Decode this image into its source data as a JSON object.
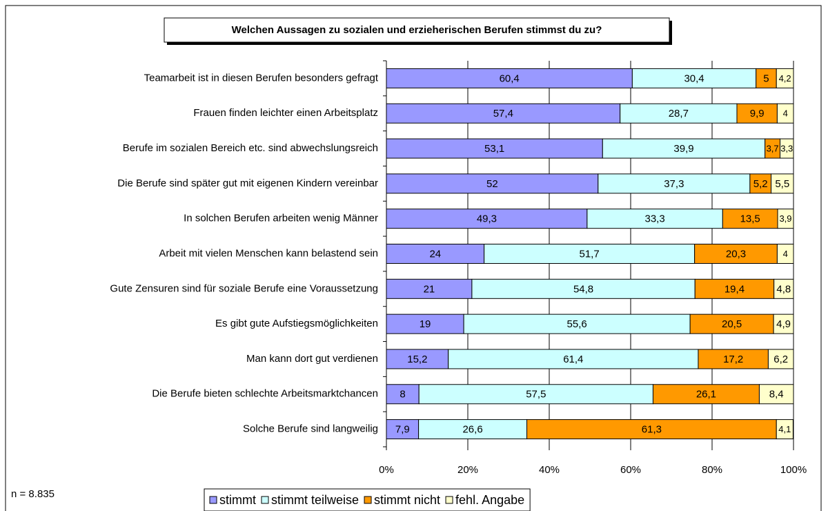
{
  "chart_data": {
    "type": "stacked_barh",
    "title": "Welchen Aussagen zu sozialen und erzieherischen Berufen stimmst du zu?",
    "note": "n = 8.835",
    "categories": [
      "Teamarbeit ist in diesen Berufen besonders gefragt",
      "Frauen finden leichter einen Arbeitsplatz",
      "Berufe im sozialen Bereich etc. sind abwechslungsreich",
      "Die Berufe sind später gut mit eigenen Kindern vereinbar",
      "In solchen Berufen arbeiten wenig Männer",
      "Arbeit mit vielen Menschen kann belastend sein",
      "Gute Zensuren sind für soziale Berufe eine Voraussetzung",
      "Es gibt gute Aufstiegsmöglichkeiten",
      "Man kann dort gut verdienen",
      "Die Berufe bieten schlechte Arbeitsmarktchancen",
      "Solche Berufe sind langweilig"
    ],
    "series": [
      {
        "name": "stimmt",
        "color": "#9999ff",
        "values": [
          60.4,
          57.4,
          53.1,
          52,
          49.3,
          24,
          21,
          19,
          15.2,
          8,
          7.9
        ],
        "value_labels": [
          "60,4",
          "57,4",
          "53,1",
          "52",
          "49,3",
          "24",
          "21",
          "19",
          "15,2",
          "8",
          "7,9"
        ]
      },
      {
        "name": "stimmt teilweise",
        "color": "#ccffff",
        "values": [
          30.4,
          28.7,
          39.9,
          37.3,
          33.3,
          51.7,
          54.8,
          55.6,
          61.4,
          57.5,
          26.6
        ],
        "value_labels": [
          "30,4",
          "28,7",
          "39,9",
          "37,3",
          "33,3",
          "51,7",
          "54,8",
          "55,6",
          "61,4",
          "57,5",
          "26,6"
        ]
      },
      {
        "name": "stimmt nicht",
        "color": "#ff9900",
        "values": [
          5,
          9.9,
          3.7,
          5.2,
          13.5,
          20.3,
          19.4,
          20.5,
          17.2,
          26.1,
          61.3
        ],
        "value_labels": [
          "5",
          "9,9",
          "3,7",
          "5,2",
          "13,5",
          "20,3",
          "19,4",
          "20,5",
          "17,2",
          "26,1",
          "61,3"
        ]
      },
      {
        "name": "fehl. Angabe",
        "color": "#ffffcc",
        "values": [
          4.2,
          4,
          3.3,
          5.5,
          3.9,
          4,
          4.8,
          4.9,
          6.2,
          8.4,
          4.1
        ],
        "value_labels": [
          "4,2",
          "4",
          "3,3",
          "5,5",
          "3,9",
          "4",
          "4,8",
          "4,9",
          "6,2",
          "8,4",
          "4,1"
        ]
      }
    ],
    "xlim": [
      0,
      100
    ],
    "xticks": [
      {
        "value": 0,
        "label": "0%"
      },
      {
        "value": 20,
        "label": "20%"
      },
      {
        "value": 40,
        "label": "40%"
      },
      {
        "value": 60,
        "label": "60%"
      },
      {
        "value": 80,
        "label": "80%"
      },
      {
        "value": 100,
        "label": "100%"
      }
    ],
    "grid": true,
    "legend": "bottom"
  }
}
